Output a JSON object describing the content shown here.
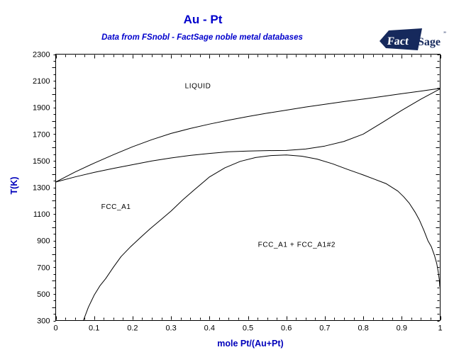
{
  "header": {
    "title": "Au - Pt",
    "subtitle": "Data from FSnobl - FactSage noble metal databases"
  },
  "logo": {
    "fact": "Fact",
    "sage": "Sage",
    "mark": "”"
  },
  "colors": {
    "accent_blue": "#0000cc",
    "axis_label_blue": "#0000bb",
    "logo_navy": "#16295c",
    "curve_black": "#000000",
    "tick_text_black": "#000000"
  },
  "chart_data": {
    "type": "line",
    "title": "Au - Pt",
    "subtitle": "Data from FSnobl - FactSage noble metal databases",
    "xlabel": "mole Pt/(Au+Pt)",
    "ylabel": "T(K)",
    "xlim": [
      0,
      1
    ],
    "ylim": [
      300,
      2300
    ],
    "x_major_step": 0.1,
    "x_minor_step": 0.025,
    "y_major_step": 200,
    "y_minor_step": 50,
    "grid": false,
    "legend": "none",
    "x_tick_labels": [
      "0",
      "0.1",
      "0.2",
      "0.3",
      "0.4",
      "0.5",
      "0.6",
      "0.7",
      "0.8",
      "0.9",
      "1"
    ],
    "y_tick_labels": [
      "300",
      "500",
      "700",
      "900",
      "1100",
      "1300",
      "1500",
      "1700",
      "1900",
      "2100",
      "2300"
    ],
    "series": [
      {
        "name": "liquidus",
        "points": [
          [
            0,
            1340
          ],
          [
            0.05,
            1415
          ],
          [
            0.1,
            1482
          ],
          [
            0.15,
            1545
          ],
          [
            0.2,
            1605
          ],
          [
            0.25,
            1658
          ],
          [
            0.3,
            1705
          ],
          [
            0.35,
            1742
          ],
          [
            0.4,
            1775
          ],
          [
            0.45,
            1805
          ],
          [
            0.5,
            1832
          ],
          [
            0.55,
            1857
          ],
          [
            0.6,
            1880
          ],
          [
            0.65,
            1903
          ],
          [
            0.7,
            1924
          ],
          [
            0.75,
            1944
          ],
          [
            0.8,
            1963
          ],
          [
            0.85,
            1983
          ],
          [
            0.9,
            2003
          ],
          [
            0.95,
            2023
          ],
          [
            1,
            2043
          ]
        ]
      },
      {
        "name": "solidus",
        "points": [
          [
            0,
            1340
          ],
          [
            0.05,
            1378
          ],
          [
            0.1,
            1412
          ],
          [
            0.15,
            1442
          ],
          [
            0.2,
            1470
          ],
          [
            0.25,
            1498
          ],
          [
            0.3,
            1521
          ],
          [
            0.35,
            1540
          ],
          [
            0.4,
            1555
          ],
          [
            0.45,
            1567
          ],
          [
            0.5,
            1573
          ],
          [
            0.55,
            1576
          ],
          [
            0.6,
            1577
          ],
          [
            0.65,
            1588
          ],
          [
            0.7,
            1610
          ],
          [
            0.75,
            1645
          ],
          [
            0.8,
            1700
          ],
          [
            0.85,
            1788
          ],
          [
            0.9,
            1878
          ],
          [
            0.95,
            1963
          ],
          [
            1,
            2040
          ]
        ]
      },
      {
        "name": "fcc-miscibility-gap",
        "points": [
          [
            0.072,
            300
          ],
          [
            0.085,
            400
          ],
          [
            0.1,
            490
          ],
          [
            0.115,
            560
          ],
          [
            0.13,
            615
          ],
          [
            0.15,
            700
          ],
          [
            0.17,
            780
          ],
          [
            0.195,
            855
          ],
          [
            0.22,
            922
          ],
          [
            0.245,
            988
          ],
          [
            0.27,
            1048
          ],
          [
            0.3,
            1122
          ],
          [
            0.33,
            1205
          ],
          [
            0.36,
            1280
          ],
          [
            0.4,
            1378
          ],
          [
            0.44,
            1447
          ],
          [
            0.48,
            1495
          ],
          [
            0.52,
            1524
          ],
          [
            0.56,
            1539
          ],
          [
            0.6,
            1543
          ],
          [
            0.64,
            1534
          ],
          [
            0.68,
            1512
          ],
          [
            0.72,
            1477
          ],
          [
            0.76,
            1434
          ],
          [
            0.8,
            1393
          ],
          [
            0.83,
            1360
          ],
          [
            0.86,
            1327
          ],
          [
            0.89,
            1272
          ],
          [
            0.905,
            1230
          ],
          [
            0.92,
            1180
          ],
          [
            0.935,
            1112
          ],
          [
            0.946,
            1055
          ],
          [
            0.958,
            975
          ],
          [
            0.968,
            900
          ],
          [
            0.977,
            855
          ],
          [
            0.985,
            790
          ],
          [
            0.991,
            730
          ],
          [
            0.995,
            665
          ],
          [
            0.998,
            600
          ],
          [
            0.999,
            555
          ]
        ]
      }
    ],
    "region_labels": [
      {
        "text": "LIQUID",
        "x": 0.37,
        "T": 2060
      },
      {
        "text": "FCC_A1",
        "x": 0.157,
        "T": 1155
      },
      {
        "text": "FCC_A1 + FCC_A1#2",
        "x": 0.627,
        "T": 870
      }
    ]
  }
}
